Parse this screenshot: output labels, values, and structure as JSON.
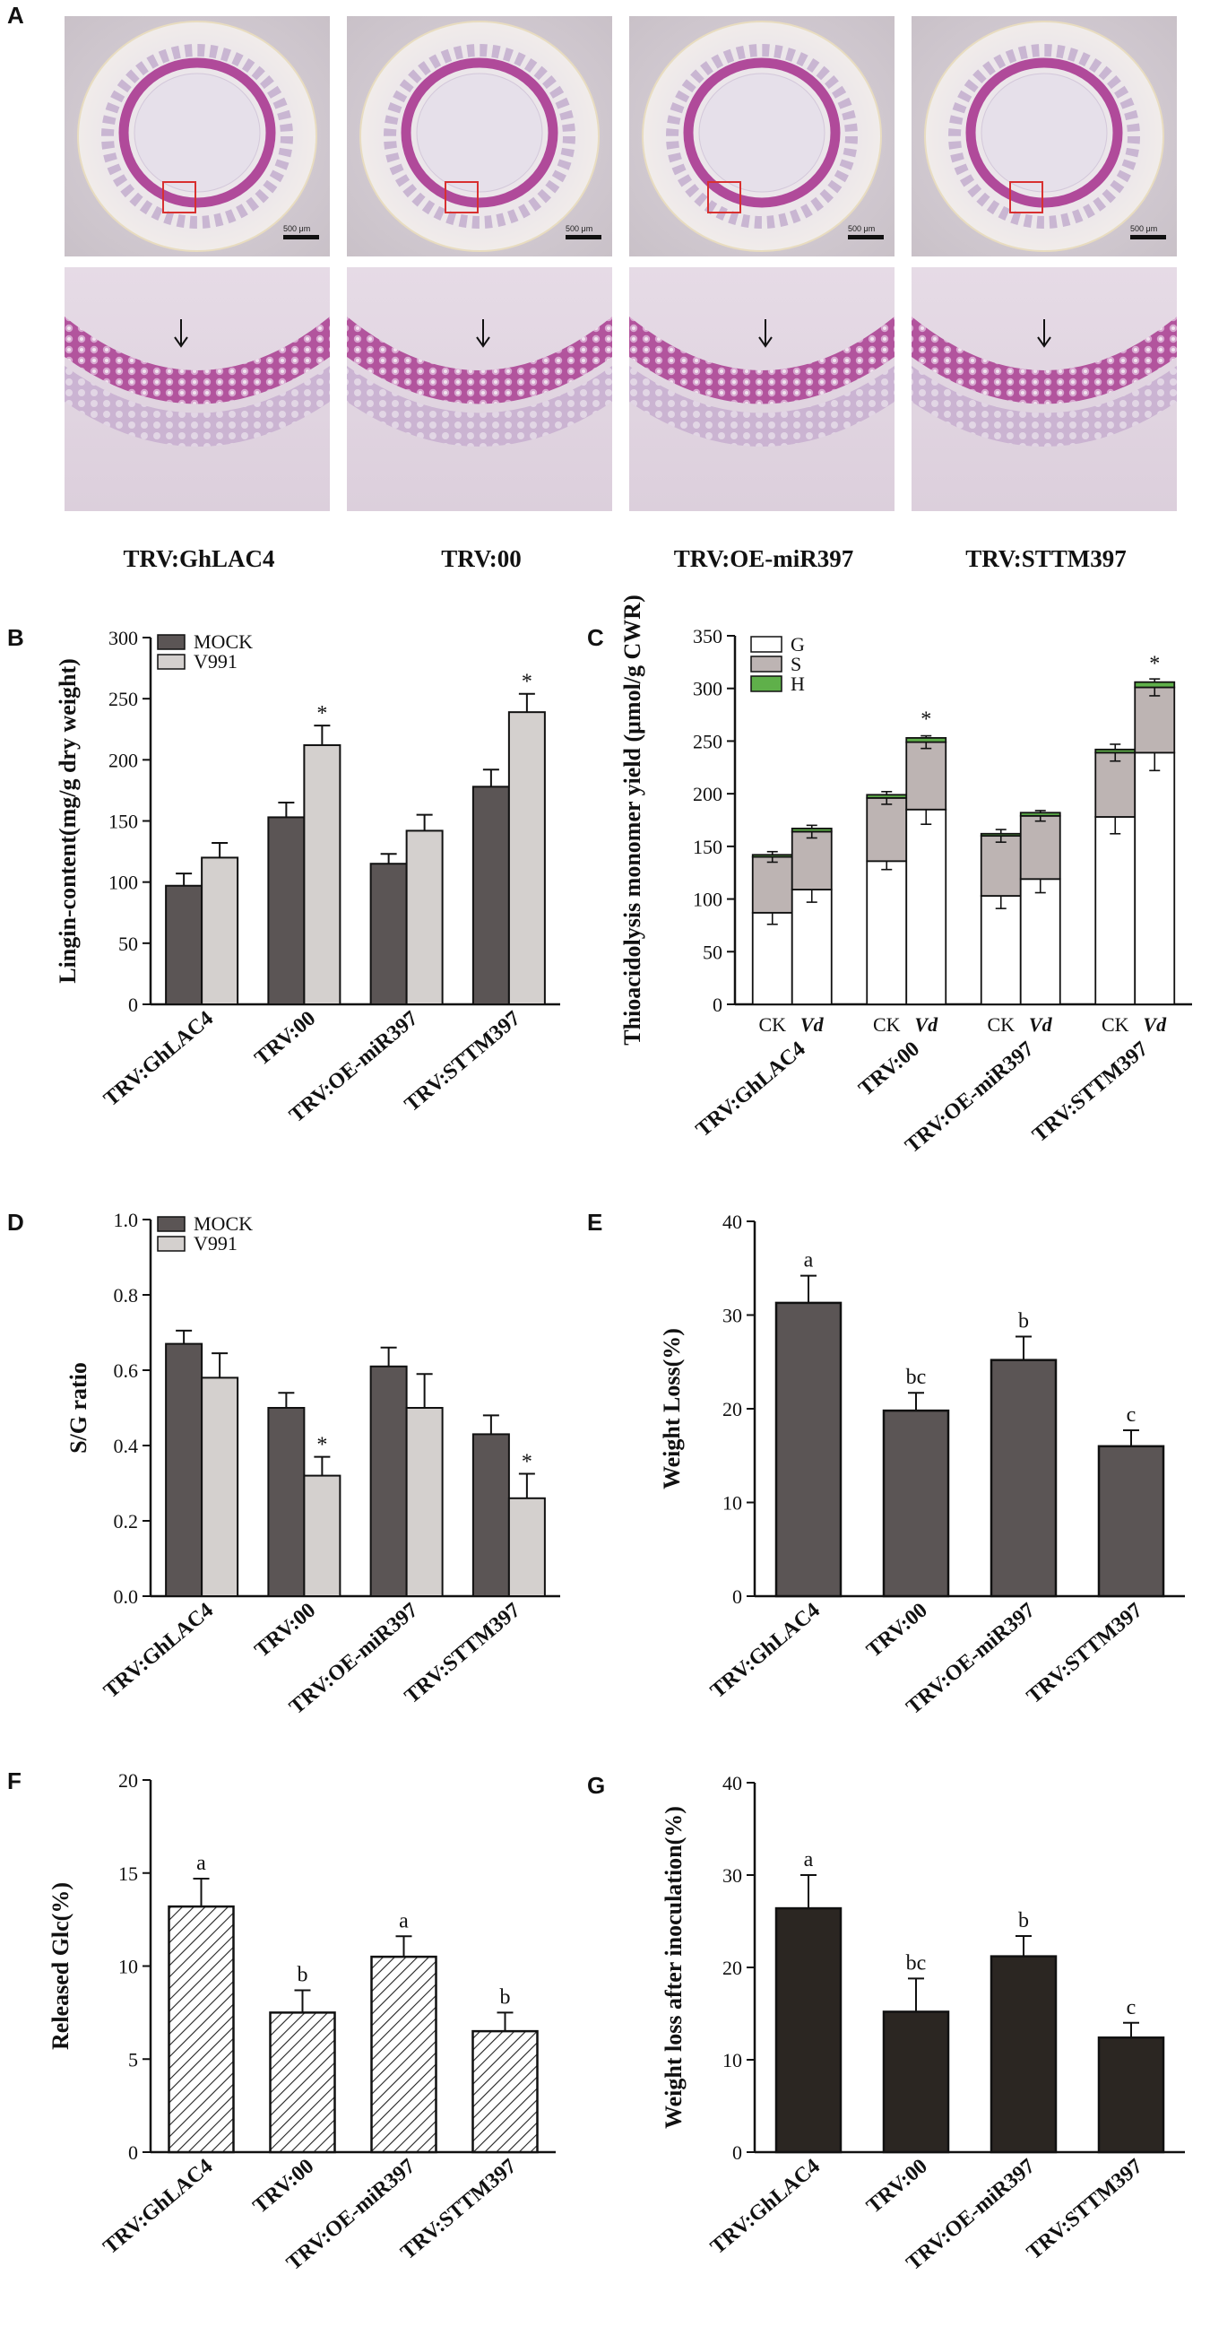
{
  "colors": {
    "mock": "#5b5555",
    "v991": "#d4d0ce",
    "weight_loss": "#5b5555",
    "weight_loss_after": "#2b2622",
    "G": "#ffffff",
    "S": "#bdb4b3",
    "H": "#5fb04a",
    "stain_pink": "#b04a9a",
    "stain_light": "#d9c8dc"
  },
  "panel_a": {
    "label": "A",
    "scale_bar_text": "500 μm",
    "captions": [
      "TRV:GhLAC4",
      "TRV:00",
      "TRV:OE-miR397",
      "TRV:STTM397"
    ]
  },
  "chart_data": [
    {
      "panel": "B",
      "type": "bar",
      "ylabel": "Lingin-content(mg/g dry weight)",
      "ylim": [
        0,
        300
      ],
      "yticks": [
        0,
        50,
        100,
        150,
        200,
        250,
        300
      ],
      "categories": [
        "TRV:GhLAC4",
        "TRV:00",
        "TRV:OE-miR397",
        "TRV:STTM397"
      ],
      "series": [
        {
          "name": "MOCK",
          "values": [
            97,
            153,
            115,
            178
          ],
          "errors": [
            10,
            12,
            8,
            14
          ]
        },
        {
          "name": "V991",
          "values": [
            120,
            212,
            142,
            239
          ],
          "errors": [
            12,
            16,
            13,
            15
          ]
        }
      ],
      "annotations": [
        "",
        "*",
        "",
        "*"
      ],
      "legend": "top-left"
    },
    {
      "panel": "C",
      "type": "bar",
      "stacked": true,
      "ylabel": "Thioacidolysis monomer yield (μmol/g CWR)",
      "ylim": [
        0,
        350
      ],
      "yticks": [
        0,
        50,
        100,
        150,
        200,
        250,
        300,
        350
      ],
      "categories": [
        "TRV:GhLAC4",
        "TRV:00",
        "TRV:OE-miR397",
        "TRV:STTM397"
      ],
      "subcategories": [
        "CK",
        "Vd"
      ],
      "series": [
        {
          "name": "G",
          "values": [
            [
              87,
              109
            ],
            [
              136,
              185
            ],
            [
              103,
              119
            ],
            [
              178,
              239
            ]
          ],
          "errors": [
            [
              11,
              12
            ],
            [
              8,
              14
            ],
            [
              12,
              13
            ],
            [
              16,
              17
            ]
          ]
        },
        {
          "name": "S",
          "values": [
            [
              53,
              55
            ],
            [
              60,
              64
            ],
            [
              57,
              60
            ],
            [
              61,
              62
            ]
          ],
          "errors": [
            [
              5,
              6
            ],
            [
              6,
              6
            ],
            [
              6,
              5
            ],
            [
              8,
              8
            ]
          ]
        },
        {
          "name": "H",
          "values": [
            [
              2,
              3
            ],
            [
              3,
              4
            ],
            [
              2,
              3
            ],
            [
              3,
              5
            ]
          ]
        }
      ],
      "annotations": [
        [
          "",
          ""
        ],
        [
          "",
          "*"
        ],
        [
          "",
          ""
        ],
        [
          "",
          "*"
        ]
      ],
      "legend": "top-left"
    },
    {
      "panel": "D",
      "type": "bar",
      "ylabel": "S/G ratio",
      "ylim": [
        0,
        1.0
      ],
      "yticks": [
        "0.0",
        "0.2",
        "0.4",
        "0.6",
        "0.8",
        "1.0"
      ],
      "categories": [
        "TRV:GhLAC4",
        "TRV:00",
        "TRV:OE-miR397",
        "TRV:STTM397"
      ],
      "series": [
        {
          "name": "MOCK",
          "values": [
            0.67,
            0.5,
            0.61,
            0.43
          ],
          "errors": [
            0.035,
            0.04,
            0.05,
            0.05
          ]
        },
        {
          "name": "V991",
          "values": [
            0.58,
            0.32,
            0.5,
            0.26
          ],
          "errors": [
            0.065,
            0.05,
            0.09,
            0.065
          ]
        }
      ],
      "annotations": [
        "",
        "*",
        "",
        "*"
      ],
      "legend": "top-left"
    },
    {
      "panel": "E",
      "type": "bar",
      "ylabel": "Weight Loss(%)",
      "ylim": [
        0,
        40
      ],
      "yticks": [
        0,
        10,
        20,
        30,
        40
      ],
      "categories": [
        "TRV:GhLAC4",
        "TRV:00",
        "TRV:OE-miR397",
        "TRV:STTM397"
      ],
      "values": [
        31.3,
        19.8,
        25.2,
        16.0
      ],
      "errors": [
        2.9,
        1.9,
        2.5,
        1.7
      ],
      "annotations": [
        "a",
        "bc",
        "b",
        "c"
      ]
    },
    {
      "panel": "F",
      "type": "bar",
      "hatched": true,
      "ylabel": "Released Glc(%)",
      "ylim": [
        0,
        20
      ],
      "yticks": [
        0,
        5,
        10,
        15,
        20
      ],
      "categories": [
        "TRV:GhLAC4",
        "TRV:00",
        "TRV:OE-miR397",
        "TRV:STTM397"
      ],
      "values": [
        13.2,
        7.5,
        10.5,
        6.5
      ],
      "errors": [
        1.5,
        1.2,
        1.1,
        1.0
      ],
      "annotations": [
        "a",
        "b",
        "a",
        "b"
      ]
    },
    {
      "panel": "G",
      "type": "bar",
      "ylabel": "Weight loss after inoculation(%)",
      "ylim": [
        0,
        40
      ],
      "yticks": [
        0,
        10,
        20,
        30,
        40
      ],
      "categories": [
        "TRV:GhLAC4",
        "TRV:00",
        "TRV:OE-miR397",
        "TRV:STTM397"
      ],
      "values": [
        26.4,
        15.2,
        21.2,
        12.4
      ],
      "errors": [
        3.6,
        3.6,
        2.2,
        1.6
      ],
      "annotations": [
        "a",
        "bc",
        "b",
        "c"
      ]
    }
  ]
}
